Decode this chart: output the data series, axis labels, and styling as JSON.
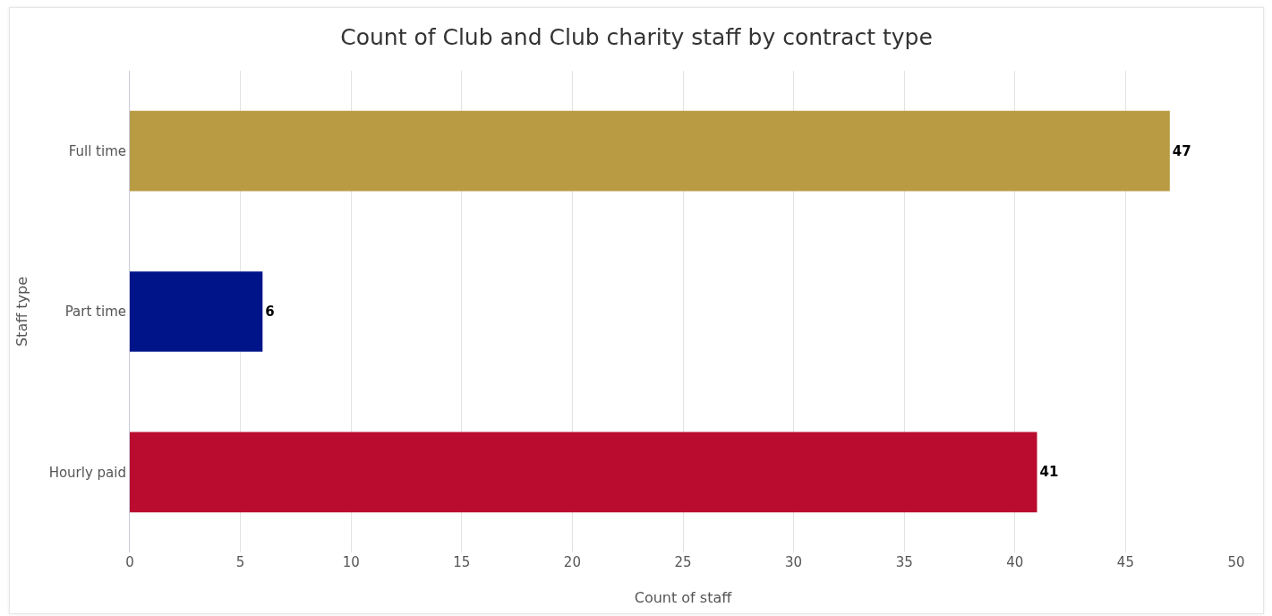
{
  "chart_data": {
    "type": "bar",
    "orientation": "horizontal",
    "title": "Count of Club and Club charity staff by contract type",
    "xlabel": "Count of staff",
    "ylabel": "Staff type",
    "categories": [
      "Full time",
      "Part time",
      "Hourly paid"
    ],
    "values": [
      47,
      6,
      41
    ],
    "colors": [
      "#b89b43",
      "#001489",
      "#ba0c2f"
    ],
    "xlim": [
      0,
      50
    ],
    "xticks": [
      0,
      5,
      10,
      15,
      20,
      25,
      30,
      35,
      40,
      45,
      50
    ],
    "grid": "x",
    "data_labels": true
  }
}
